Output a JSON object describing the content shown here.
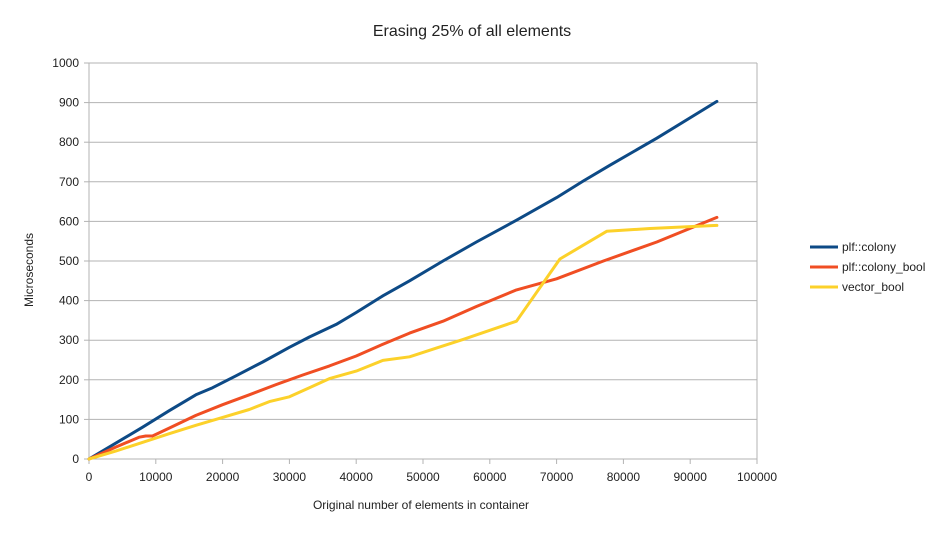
{
  "chart_data": {
    "type": "line",
    "title": "Erasing 25% of all elements",
    "xlabel": "Original number of elements in container",
    "ylabel": "Microseconds",
    "xlim": [
      0,
      100000
    ],
    "ylim": [
      0,
      1000
    ],
    "xticks": [
      0,
      10000,
      20000,
      30000,
      40000,
      50000,
      60000,
      70000,
      80000,
      90000,
      100000
    ],
    "yticks": [
      0,
      100,
      200,
      300,
      400,
      500,
      600,
      700,
      800,
      900,
      1000
    ],
    "grid": "horizontal",
    "legend_position": "right",
    "series": [
      {
        "name": "plf::colony",
        "color": "#0d4a86",
        "x": [
          0,
          4000,
          8000,
          12000,
          16000,
          18500,
          22000,
          26000,
          30000,
          33000,
          37000,
          40000,
          44000,
          48000,
          53000,
          58000,
          64000,
          70000,
          74000,
          78000,
          85000,
          94000
        ],
        "y": [
          0,
          40,
          80,
          122,
          162,
          180,
          210,
          245,
          282,
          308,
          340,
          370,
          412,
          450,
          500,
          548,
          603,
          660,
          702,
          742,
          810,
          903
        ]
      },
      {
        "name": "plf::colony_bool",
        "color": "#f04e23",
        "x": [
          0,
          4000,
          7500,
          8500,
          9500,
          12000,
          16000,
          20000,
          24000,
          28000,
          32000,
          36000,
          40000,
          44000,
          48000,
          53000,
          58000,
          64000,
          70000,
          77000,
          85000,
          94000
        ],
        "y": [
          0,
          30,
          55,
          58,
          58,
          78,
          110,
          137,
          162,
          188,
          212,
          235,
          260,
          290,
          318,
          348,
          385,
          427,
          455,
          500,
          548,
          610
        ]
      },
      {
        "name": "vector_bool",
        "color": "#fcd12a",
        "x": [
          0,
          4000,
          8000,
          12000,
          16000,
          20000,
          24000,
          27000,
          30000,
          33000,
          36000,
          40000,
          44000,
          48000,
          52000,
          56000,
          60000,
          64000,
          70500,
          77500,
          84000,
          94000
        ],
        "y": [
          0,
          20,
          42,
          64,
          85,
          105,
          125,
          145,
          157,
          180,
          203,
          222,
          249,
          258,
          280,
          302,
          325,
          348,
          505,
          575,
          582,
          590
        ]
      }
    ]
  }
}
